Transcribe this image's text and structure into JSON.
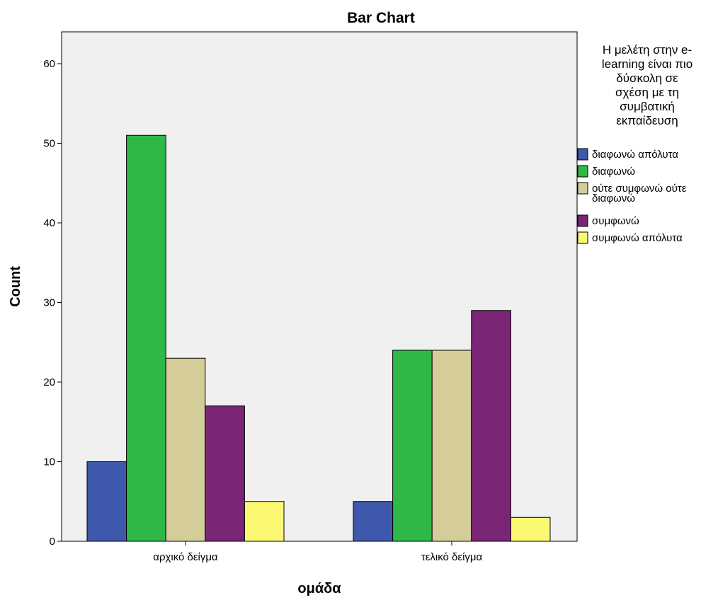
{
  "chart_data": {
    "type": "bar",
    "title": "Bar Chart",
    "xlabel": "ομάδα",
    "ylabel": "Count",
    "ylim": [
      0,
      64
    ],
    "yticks": [
      0,
      10,
      20,
      30,
      40,
      50,
      60
    ],
    "categories": [
      "αρχικό δείγμα",
      "τελικό δείγμα"
    ],
    "legend": {
      "title_lines": [
        "Η μελέτη στην e-",
        "learning είναι πιο",
        "δύσκολη σε",
        "σχέση με τη",
        "συμβατική",
        "εκπαίδευση"
      ],
      "placement": "right"
    },
    "series": [
      {
        "name": "διαφωνώ απόλυτα",
        "name_lines": [
          "διαφωνώ απόλυτα"
        ],
        "color": "#3E58AC",
        "values": [
          10,
          5
        ]
      },
      {
        "name": "διαφωνώ",
        "name_lines": [
          "διαφωνώ"
        ],
        "color": "#2EB848",
        "values": [
          51,
          24
        ]
      },
      {
        "name": "ούτε συμφωνώ ούτε διαφωνώ",
        "name_lines": [
          "ούτε συμφωνώ ούτε",
          "διαφωνώ"
        ],
        "color": "#D4CC99",
        "values": [
          23,
          24
        ]
      },
      {
        "name": "συμφωνώ",
        "name_lines": [
          "συμφωνώ"
        ],
        "color": "#7B2577",
        "values": [
          17,
          29
        ]
      },
      {
        "name": "συμφωνώ απόλυτα",
        "name_lines": [
          "συμφωνώ απόλυτα"
        ],
        "color": "#FBF873",
        "values": [
          5,
          3
        ]
      }
    ],
    "plot_background": "#F0F0F0",
    "grid": false
  }
}
